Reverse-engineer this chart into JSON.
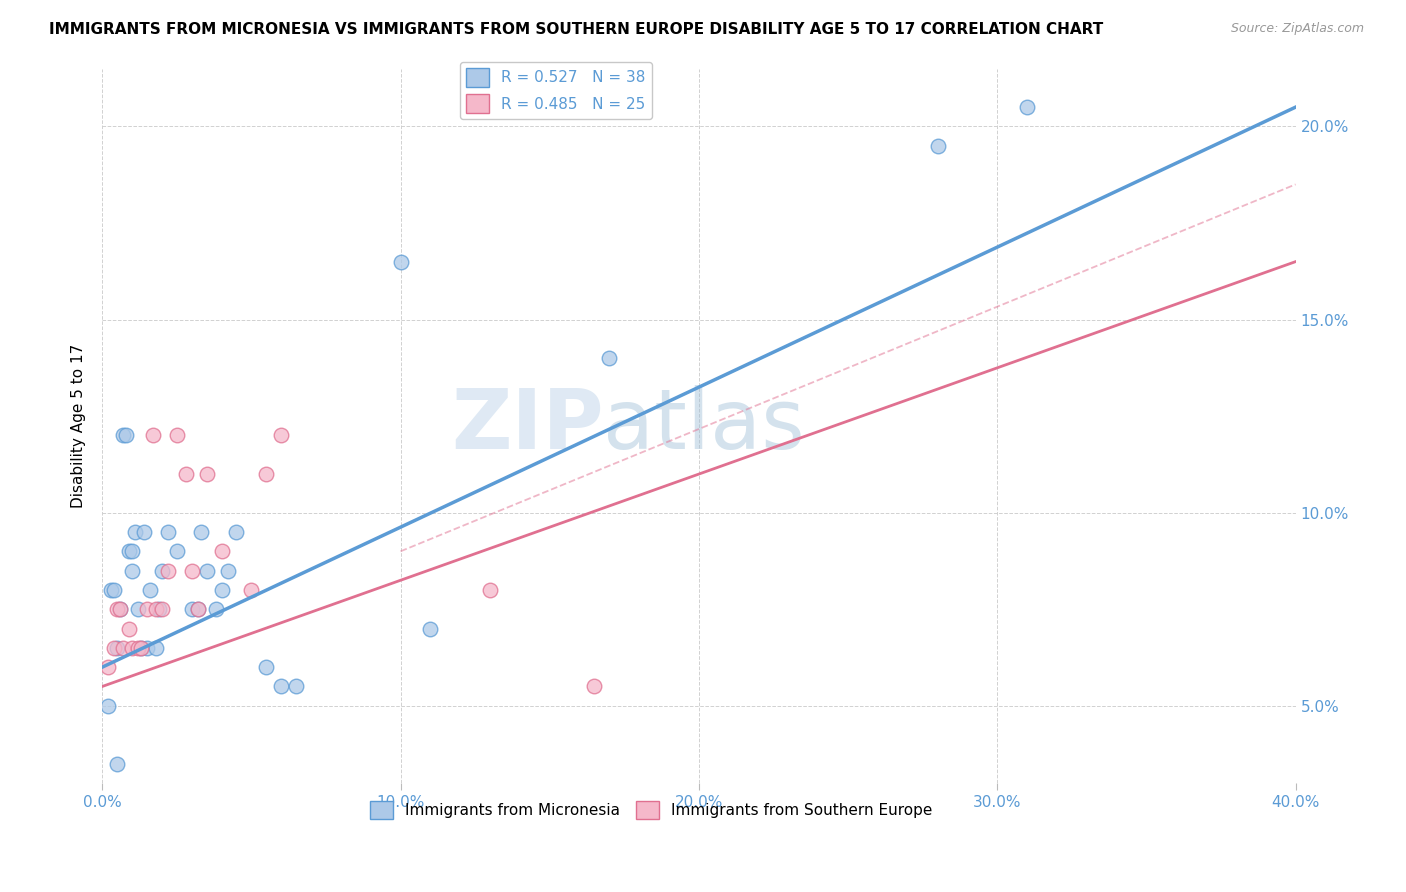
{
  "title": "IMMIGRANTS FROM MICRONESIA VS IMMIGRANTS FROM SOUTHERN EUROPE DISABILITY AGE 5 TO 17 CORRELATION CHART",
  "source": "Source: ZipAtlas.com",
  "ylabel": "Disability Age 5 to 17",
  "xlim": [
    0.0,
    0.4
  ],
  "ylim": [
    0.03,
    0.215
  ],
  "xticks": [
    0.0,
    0.1,
    0.2,
    0.3,
    0.4
  ],
  "yticks": [
    0.05,
    0.1,
    0.15,
    0.2
  ],
  "ytick_labels": [
    "5.0%",
    "10.0%",
    "15.0%",
    "20.0%"
  ],
  "xtick_labels": [
    "0.0%",
    "10.0%",
    "20.0%",
    "30.0%",
    "40.0%"
  ],
  "legend_entries": [
    {
      "label": "R = 0.527   N = 38"
    },
    {
      "label": "R = 0.485   N = 25"
    }
  ],
  "blue_color": "#5b9bd5",
  "pink_color": "#e07090",
  "blue_scatter_color": "#adc9e8",
  "pink_scatter_color": "#f5b8ca",
  "watermark_zip": "ZIP",
  "watermark_atlas": "atlas",
  "blue_line_x": [
    0.0,
    0.4
  ],
  "blue_line_y": [
    0.06,
    0.205
  ],
  "pink_line_x": [
    0.0,
    0.4
  ],
  "pink_line_y": [
    0.055,
    0.165
  ],
  "dashed_line_x": [
    0.1,
    0.4
  ],
  "dashed_line_y": [
    0.09,
    0.185
  ],
  "blue_scatter_x": [
    0.002,
    0.003,
    0.004,
    0.005,
    0.006,
    0.007,
    0.008,
    0.009,
    0.01,
    0.01,
    0.011,
    0.012,
    0.013,
    0.014,
    0.015,
    0.016,
    0.018,
    0.019,
    0.02,
    0.022,
    0.025,
    0.03,
    0.032,
    0.033,
    0.035,
    0.038,
    0.04,
    0.042,
    0.045,
    0.055,
    0.06,
    0.065,
    0.1,
    0.11,
    0.17,
    0.28,
    0.31,
    0.005
  ],
  "blue_scatter_y": [
    0.05,
    0.08,
    0.08,
    0.065,
    0.075,
    0.12,
    0.12,
    0.09,
    0.085,
    0.09,
    0.095,
    0.075,
    0.065,
    0.095,
    0.065,
    0.08,
    0.065,
    0.075,
    0.085,
    0.095,
    0.09,
    0.075,
    0.075,
    0.095,
    0.085,
    0.075,
    0.08,
    0.085,
    0.095,
    0.06,
    0.055,
    0.055,
    0.165,
    0.07,
    0.14,
    0.195,
    0.205,
    0.035
  ],
  "pink_scatter_x": [
    0.002,
    0.004,
    0.005,
    0.006,
    0.007,
    0.009,
    0.01,
    0.012,
    0.013,
    0.015,
    0.017,
    0.018,
    0.02,
    0.022,
    0.025,
    0.028,
    0.03,
    0.032,
    0.035,
    0.04,
    0.05,
    0.055,
    0.06,
    0.13,
    0.165
  ],
  "pink_scatter_y": [
    0.06,
    0.065,
    0.075,
    0.075,
    0.065,
    0.07,
    0.065,
    0.065,
    0.065,
    0.075,
    0.12,
    0.075,
    0.075,
    0.085,
    0.12,
    0.11,
    0.085,
    0.075,
    0.11,
    0.09,
    0.08,
    0.11,
    0.12,
    0.08,
    0.055
  ]
}
